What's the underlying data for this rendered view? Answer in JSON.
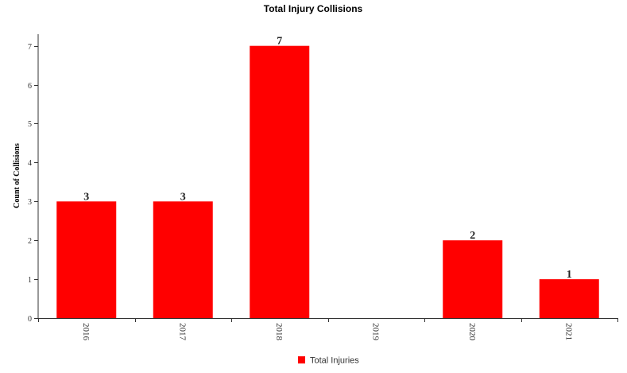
{
  "chart_data": {
    "type": "bar",
    "title": "Total Injury Collisions",
    "xlabel": "",
    "ylabel": "Count of Collisions",
    "categories": [
      "2016",
      "2017",
      "2018",
      "2019",
      "2020",
      "2021"
    ],
    "series": [
      {
        "name": "Total Injuries",
        "values": [
          3,
          3,
          7,
          0,
          2,
          1
        ],
        "color": "#ff0000"
      }
    ],
    "data_labels": [
      "3",
      "3",
      "7",
      "",
      "2",
      "1"
    ],
    "yticks": [
      0,
      1,
      2,
      3,
      4,
      5,
      6,
      7
    ],
    "ylim": [
      0,
      7.3
    ],
    "grid": false,
    "legend_position": "bottom-center",
    "xtick_rotation": "vertical"
  }
}
